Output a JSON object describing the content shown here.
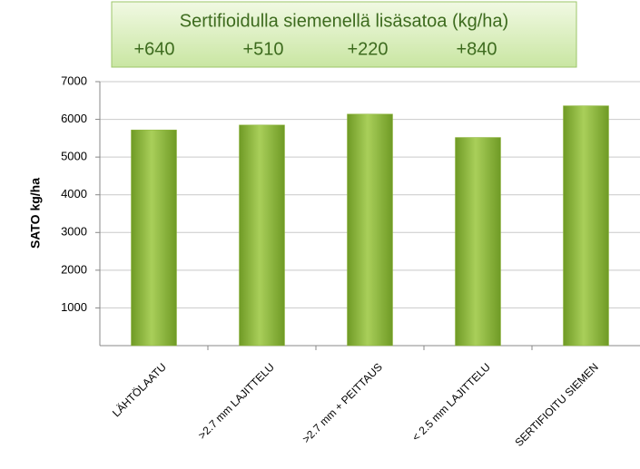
{
  "chart_data": {
    "type": "bar",
    "annotation_title": "Sertifioidulla siemenellä lisäsatoa (kg/ha)",
    "annotations": [
      "+640",
      "+510",
      "+220",
      "+840"
    ],
    "y_label": "SATO kg/ha",
    "categories": [
      "LÄHTÖLAATU",
      ">2.7 mm LAJITTELU",
      ">2.7 mm + PEITTAUS",
      "< 2.5 mm LAJITTELU",
      "SERTIFIOITU SIEMEN"
    ],
    "values": [
      5720,
      5850,
      6140,
      5520,
      6360
    ],
    "color": "#8db43a",
    "ylim": [
      0,
      7000
    ],
    "yticks": [
      1000,
      2000,
      3000,
      4000,
      5000,
      6000,
      7000
    ],
    "grid": true
  }
}
